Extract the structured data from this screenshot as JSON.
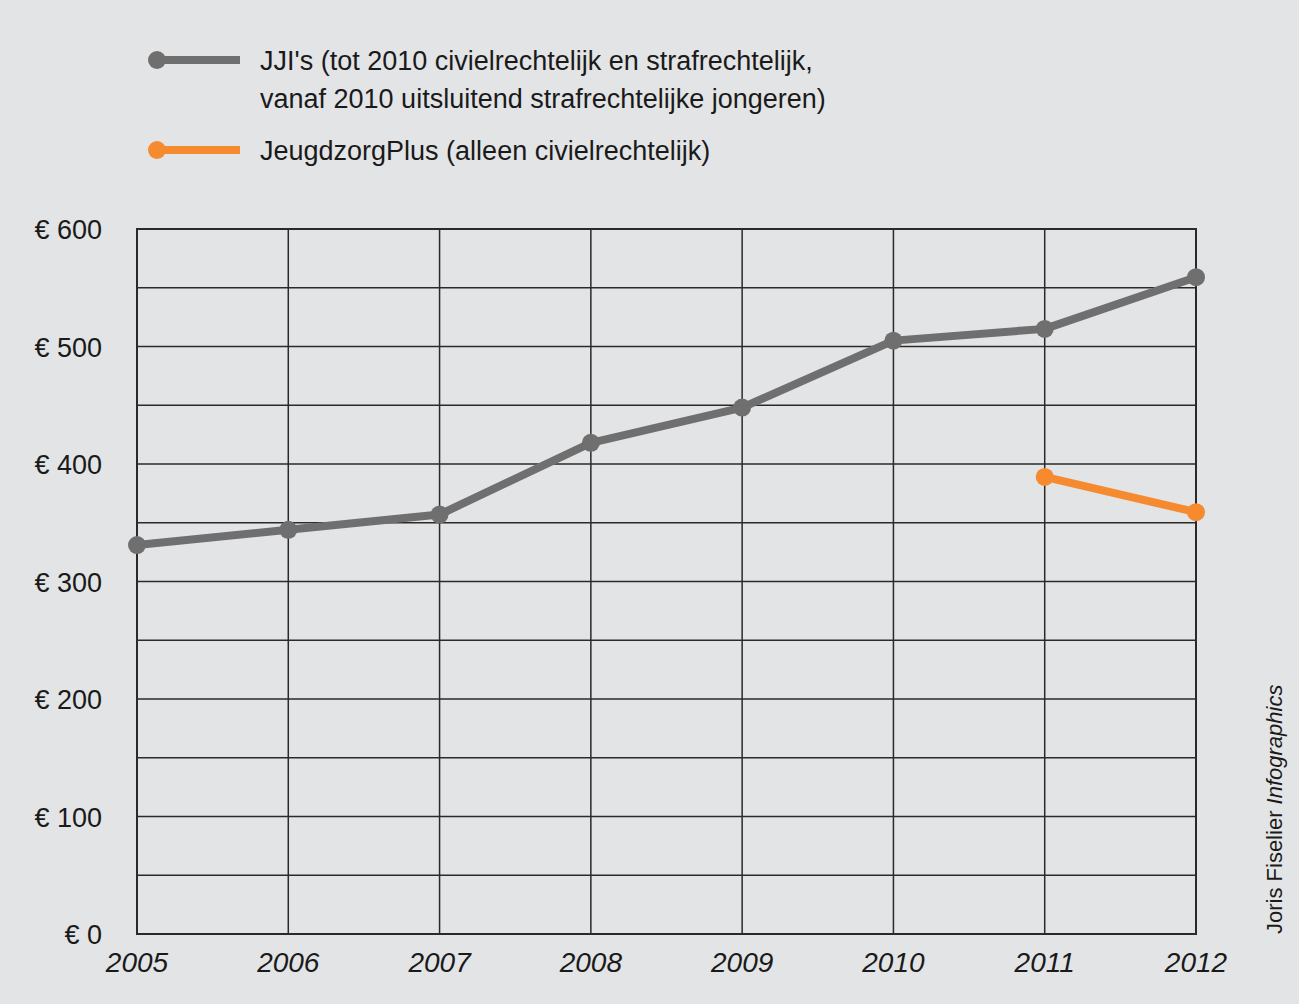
{
  "chart_data": {
    "type": "line",
    "categories": [
      "2005",
      "2006",
      "2007",
      "2008",
      "2009",
      "2010",
      "2011",
      "2012"
    ],
    "series": [
      {
        "name": "JJI's (tot 2010 civielrechtelijk en strafrechtelijk,\nvanaf 2010 uitsluitend strafrechtelijke jongeren)",
        "color": "#6f6f70",
        "marker": "circle",
        "values": [
          331,
          344,
          357,
          418,
          448,
          505,
          515,
          559
        ]
      },
      {
        "name": "JeugdzorgPlus (alleen civielrechtelijk)",
        "color": "#f58b2e",
        "marker": "circle",
        "values": [
          null,
          null,
          null,
          null,
          null,
          null,
          389,
          359
        ]
      }
    ],
    "ylim": [
      0,
      600
    ],
    "yticks": [
      {
        "value": 0,
        "label": "€ 0"
      },
      {
        "value": 100,
        "label": "€ 100"
      },
      {
        "value": 200,
        "label": "€ 200"
      },
      {
        "value": 300,
        "label": "€ 300"
      },
      {
        "value": 400,
        "label": "€ 400"
      },
      {
        "value": 500,
        "label": "€ 500"
      },
      {
        "value": 600,
        "label": "€ 600"
      }
    ],
    "grid": true,
    "legend": "top-left",
    "annotations": [
      "Joris Fiselier",
      "Infographics"
    ]
  }
}
